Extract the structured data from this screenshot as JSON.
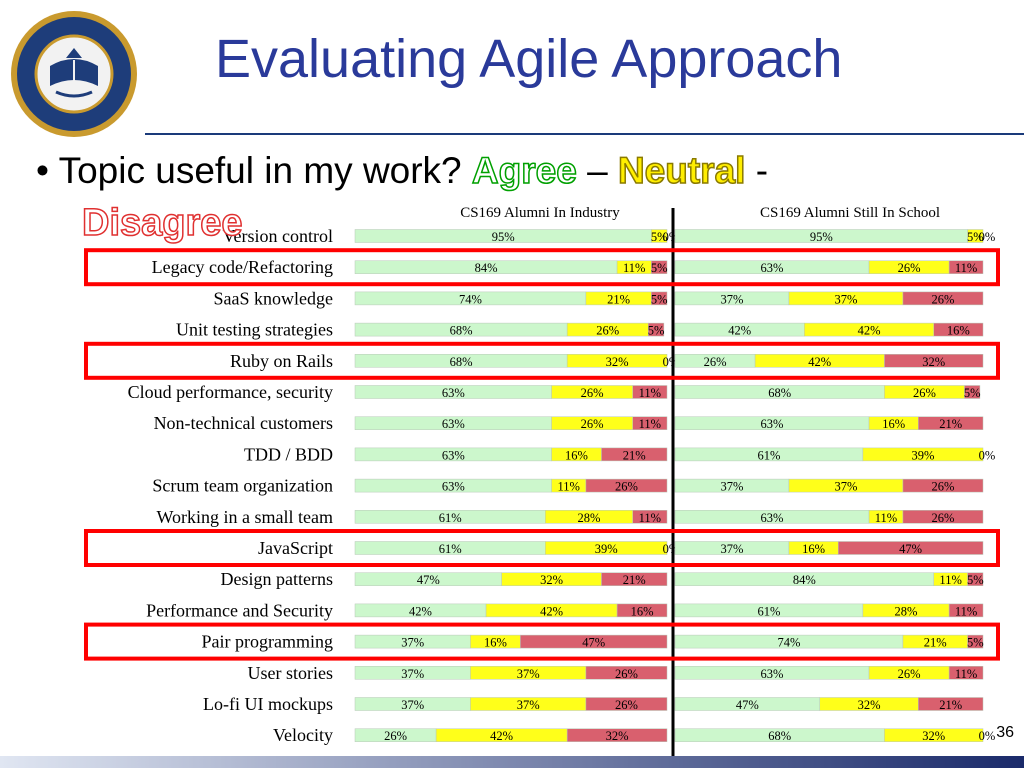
{
  "slide": {
    "title": "Evaluating Agile Approach",
    "bullet_prefix": "Topic useful in my work?",
    "agree": "Agree",
    "dash": "–",
    "neutral": "Neutral",
    "dash2": "-",
    "disagree": "Disagree",
    "page_number": "36",
    "seal_alt": "University of California Berkeley seal"
  },
  "colors": {
    "agree": "#ccf7cc",
    "neutral": "#ffff1a",
    "disagree": "#d9606e",
    "highlight": "#ff0000",
    "title": "#2a3a9a"
  },
  "chart_data": {
    "type": "bar",
    "stacked": true,
    "panels": [
      {
        "title": "CS169 Alumni In Industry"
      },
      {
        "title": "CS169 Alumni  Still In School"
      }
    ],
    "categories": [
      "Version control",
      "Legacy code/Refactoring",
      "SaaS knowledge",
      "Unit testing strategies",
      "Ruby on Rails",
      "Cloud performance, security",
      "Non-technical customers",
      "TDD / BDD",
      "Scrum team organization",
      "Working in a small team",
      "JavaScript",
      "Design patterns",
      "Performance and Security",
      "Pair programming",
      "User stories",
      "Lo-fi UI mockups",
      "Velocity"
    ],
    "series": [
      {
        "name": "Agree",
        "industry": [
          95,
          84,
          74,
          68,
          68,
          63,
          63,
          63,
          63,
          61,
          61,
          47,
          42,
          37,
          37,
          37,
          26
        ],
        "school": [
          95,
          63,
          37,
          42,
          26,
          68,
          63,
          61,
          37,
          63,
          37,
          84,
          61,
          74,
          63,
          47,
          68
        ]
      },
      {
        "name": "Neutral",
        "industry": [
          5,
          11,
          21,
          26,
          32,
          26,
          26,
          16,
          11,
          28,
          39,
          32,
          42,
          16,
          37,
          37,
          42
        ],
        "school": [
          5,
          26,
          37,
          42,
          42,
          26,
          16,
          39,
          37,
          11,
          16,
          11,
          28,
          21,
          26,
          32,
          32
        ]
      },
      {
        "name": "Disagree",
        "industry": [
          0,
          5,
          5,
          5,
          0,
          11,
          11,
          21,
          26,
          11,
          0,
          21,
          16,
          47,
          26,
          26,
          32
        ],
        "school": [
          0,
          11,
          26,
          16,
          32,
          5,
          21,
          0,
          26,
          26,
          47,
          5,
          11,
          5,
          11,
          21,
          0
        ]
      }
    ],
    "highlighted": [
      "Legacy code/Refactoring",
      "Ruby on Rails",
      "JavaScript",
      "Pair programming"
    ],
    "xlim": [
      0,
      100
    ]
  }
}
